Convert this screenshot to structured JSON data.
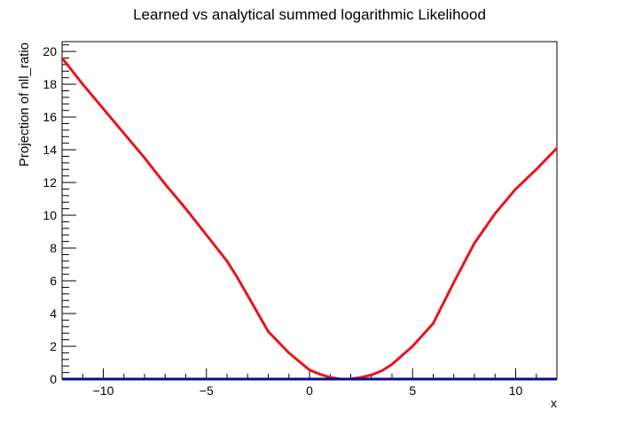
{
  "chart_data": {
    "type": "line",
    "title": "Learned vs analytical summed logarithmic Likelihood",
    "xlabel": "x",
    "ylabel": "Projection of nll_ratio",
    "xlim": [
      -12,
      12
    ],
    "ylim": [
      0,
      20.6
    ],
    "x_ticks": [
      -10,
      -5,
      0,
      5,
      10
    ],
    "x_tick_labels": [
      "−10",
      "−5",
      "0",
      "5",
      "10"
    ],
    "y_ticks": [
      0,
      2,
      4,
      6,
      8,
      10,
      12,
      14,
      16,
      18,
      20
    ],
    "y_tick_labels": [
      "0",
      "2",
      "4",
      "6",
      "8",
      "10",
      "12",
      "14",
      "16",
      "18",
      "20"
    ],
    "grid": false,
    "legend": "none",
    "series": [
      {
        "color": "#e8141c",
        "x": [
          -12,
          -11,
          -10,
          -9,
          -8,
          -7,
          -6,
          -5,
          -4,
          -3.5,
          -3,
          -2,
          -1,
          0,
          0.5,
          1,
          1.5,
          2,
          2.5,
          3,
          3.5,
          4,
          5,
          6,
          7,
          8,
          9,
          10,
          11,
          12
        ],
        "y": [
          19.6,
          18.0,
          16.5,
          15.0,
          13.5,
          11.9,
          10.4,
          8.8,
          7.2,
          6.2,
          5.1,
          2.9,
          1.6,
          0.55,
          0.3,
          0.1,
          0.0,
          0.0,
          0.1,
          0.25,
          0.5,
          0.9,
          2.0,
          3.4,
          5.9,
          8.3,
          10.1,
          11.6,
          12.8,
          14.1
        ]
      },
      {
        "color": "#0a0a8c",
        "x": [
          -12,
          12
        ],
        "y": [
          0,
          0
        ]
      }
    ]
  }
}
